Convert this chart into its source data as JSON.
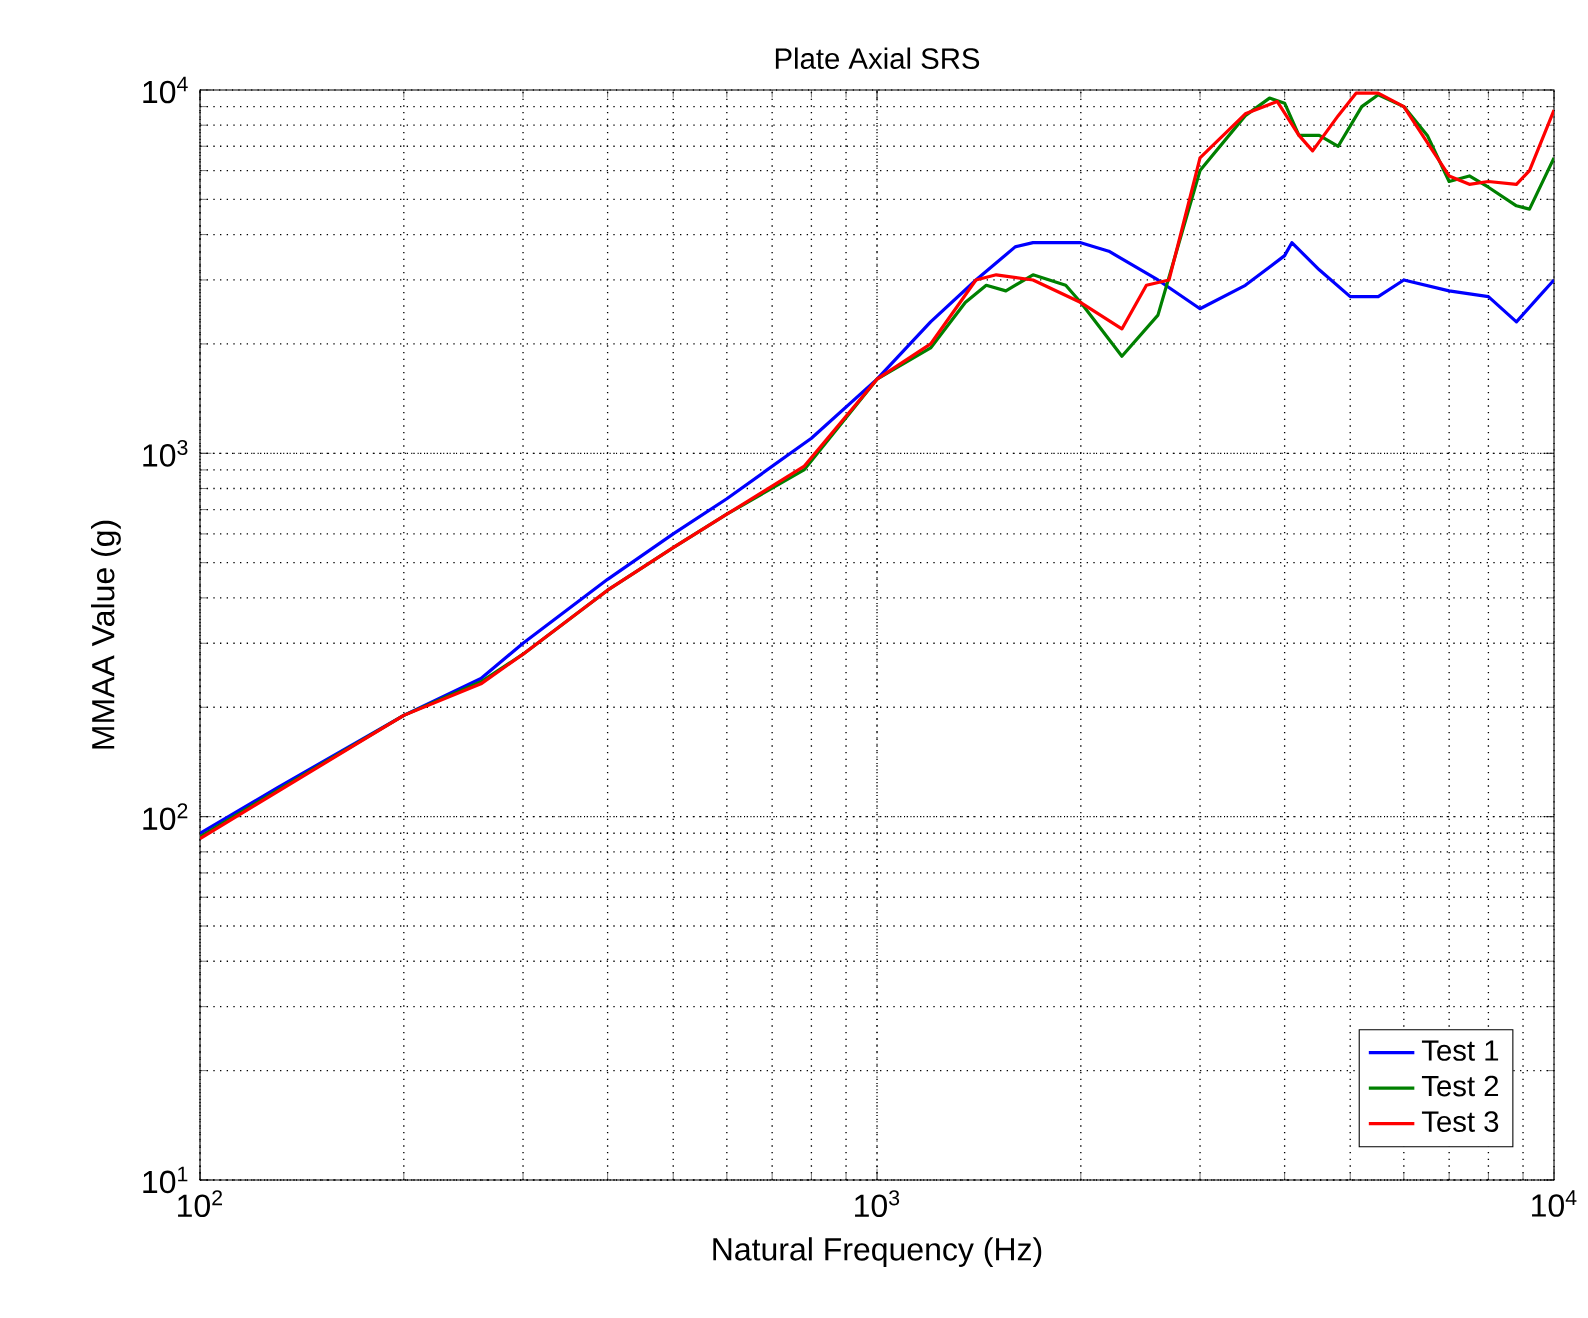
{
  "chart_data": {
    "type": "line",
    "title": "Plate Axial SRS",
    "xlabel": "Natural Frequency (Hz)",
    "ylabel": "MMAA Value (g)",
    "log": "xy",
    "grid": true,
    "legend": "bottom right",
    "xlim": [
      100,
      10000
    ],
    "ylim": [
      10,
      10000
    ],
    "xticks": [
      {
        "value": 100,
        "label": "10$^{2}$"
      },
      {
        "value": 1000,
        "label": "10$^{3}$"
      },
      {
        "value": 10000,
        "label": "10$^{4}$"
      }
    ],
    "yticks": [
      {
        "value": 10,
        "label": "10$^{1}$"
      },
      {
        "value": 100,
        "label": "10$^{2}$"
      },
      {
        "value": 1000,
        "label": "10$^{3}$"
      },
      {
        "value": 10000,
        "label": "10$^{4}$"
      }
    ],
    "series": [
      {
        "name": "Test 1",
        "color": "#0000ff",
        "x": [
          100,
          130,
          200,
          260,
          300,
          400,
          500,
          600,
          800,
          1000,
          1200,
          1400,
          1600,
          1700,
          2000,
          2200,
          2600,
          3000,
          3500,
          4000,
          4100,
          4500,
          5000,
          5500,
          6000,
          7000,
          8000,
          8800,
          9500,
          10000
        ],
        "values": [
          90,
          120,
          190,
          240,
          300,
          450,
          600,
          750,
          1100,
          1600,
          2300,
          3000,
          3700,
          3800,
          3800,
          3600,
          3000,
          2500,
          2900,
          3500,
          3800,
          3200,
          2700,
          2700,
          3000,
          2800,
          2700,
          2300,
          2700,
          3000
        ]
      },
      {
        "name": "Test 2",
        "color": "#008000",
        "x": [
          100,
          130,
          200,
          260,
          300,
          400,
          500,
          600,
          780,
          1000,
          1200,
          1350,
          1450,
          1550,
          1700,
          1900,
          2000,
          2300,
          2600,
          3000,
          3500,
          3800,
          4000,
          4200,
          4500,
          4800,
          5200,
          5500,
          6000,
          6500,
          7000,
          7500,
          8000,
          8800,
          9200,
          10000
        ],
        "values": [
          88,
          118,
          190,
          235,
          280,
          420,
          550,
          680,
          900,
          1600,
          1950,
          2600,
          2900,
          2800,
          3100,
          2900,
          2600,
          1850,
          2400,
          6000,
          8500,
          9500,
          9200,
          7500,
          7500,
          7000,
          9000,
          9700,
          9000,
          7500,
          5600,
          5800,
          5400,
          4800,
          4700,
          6500
        ]
      },
      {
        "name": "Test 3",
        "color": "#ff0000",
        "x": [
          100,
          130,
          200,
          260,
          300,
          400,
          500,
          600,
          780,
          1000,
          1200,
          1400,
          1500,
          1700,
          2000,
          2300,
          2500,
          2700,
          3000,
          3500,
          3900,
          4200,
          4400,
          4800,
          5100,
          5500,
          6000,
          7000,
          7500,
          8000,
          8800,
          9200,
          10000
        ],
        "values": [
          87,
          117,
          190,
          232,
          280,
          420,
          550,
          680,
          920,
          1600,
          2000,
          3000,
          3100,
          3000,
          2600,
          2200,
          2900,
          3000,
          6500,
          8600,
          9300,
          7500,
          6800,
          8500,
          9800,
          9800,
          9000,
          5800,
          5500,
          5600,
          5500,
          6000,
          8800
        ]
      }
    ]
  }
}
